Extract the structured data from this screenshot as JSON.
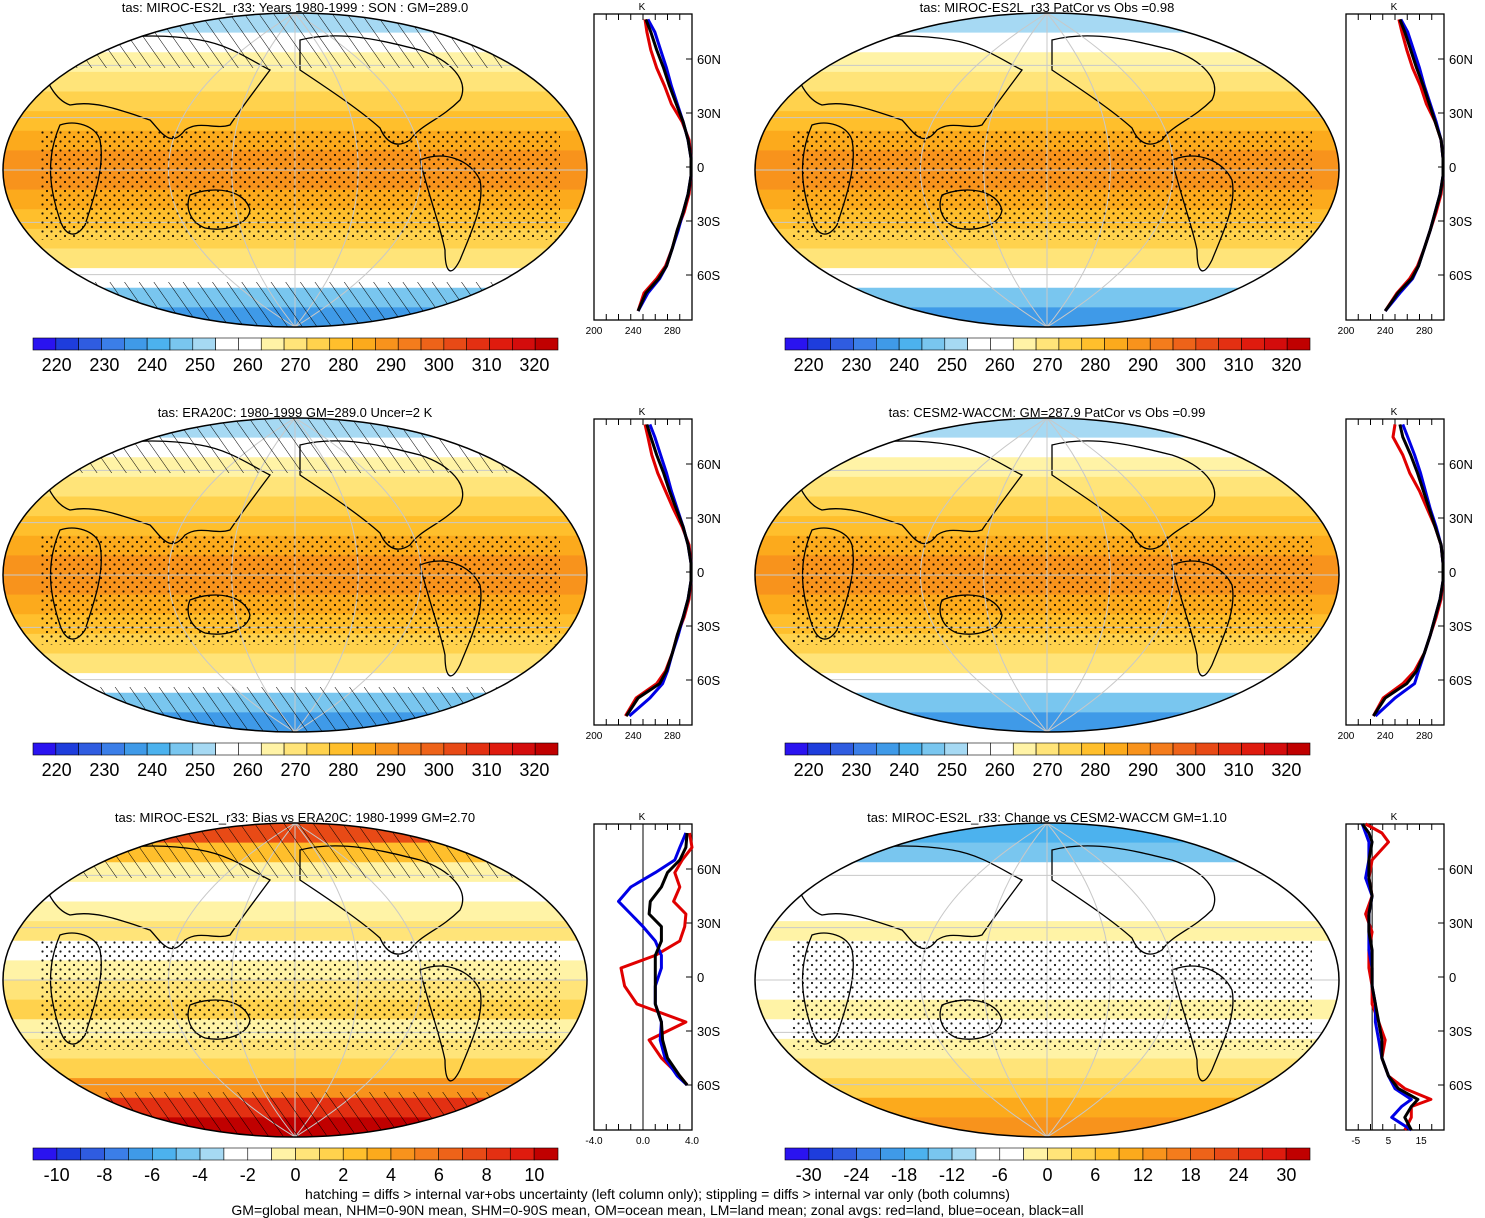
{
  "panels": [
    {
      "title": "tas: MIROC-ES2L_r33: Years 1980-1999 : SON : GM=289.0",
      "colorbar": "abs",
      "hatch": true,
      "land_style": "abs"
    },
    {
      "title": "tas: MIROC-ES2L_r33 PatCor vs Obs =0.98",
      "colorbar": "abs",
      "hatch": false,
      "land_style": "abs"
    },
    {
      "title": "tas: ERA20C: 1980-1999 GM=289.0 Uncer=2 K",
      "colorbar": "abs",
      "hatch": true,
      "land_style": "abs"
    },
    {
      "title": "tas: CESM2-WACCM: GM=287.9 PatCor vs Obs =0.99",
      "colorbar": "abs",
      "hatch": false,
      "land_style": "abs"
    },
    {
      "title": "tas: MIROC-ES2L_r33: Bias vs ERA20C: 1980-1999  GM=2.70",
      "colorbar": "bias",
      "hatch": true,
      "land_style": "bias"
    },
    {
      "title": "tas: MIROC-ES2L_r33: Change vs CESM2-WACCM GM=1.10",
      "colorbar": "change",
      "hatch": false,
      "land_style": "change"
    }
  ],
  "colorbars": {
    "abs": {
      "labels": [
        "220",
        "230",
        "240",
        "250",
        "260",
        "270",
        "280",
        "290",
        "300",
        "310",
        "320"
      ],
      "colors": [
        "#2a13f0",
        "#1e3ddc",
        "#2f5ce0",
        "#3b7ee8",
        "#3f9ae8",
        "#4cb2ee",
        "#79c6ef",
        "#a6d9f3",
        "#ffffff",
        "#ffffff",
        "#fff3a6",
        "#ffe479",
        "#ffd24d",
        "#ffbf2c",
        "#fcaa1c",
        "#f8931c",
        "#f47c1c",
        "#ee6319",
        "#e84a16",
        "#e33012",
        "#df1b0e",
        "#d40c0c",
        "#c00000"
      ]
    },
    "bias": {
      "labels": [
        "-10",
        "-8",
        "-6",
        "-4",
        "-2",
        "0",
        "2",
        "4",
        "6",
        "8",
        "10"
      ],
      "colors": [
        "#2a13f0",
        "#1e3ddc",
        "#2f5ce0",
        "#3b7ee8",
        "#3f9ae8",
        "#4cb2ee",
        "#79c6ef",
        "#a6d9f3",
        "#ffffff",
        "#ffffff",
        "#fff3a6",
        "#ffe479",
        "#ffd24d",
        "#ffbf2c",
        "#fcaa1c",
        "#f8931c",
        "#f47c1c",
        "#ee6319",
        "#e84a16",
        "#e33012",
        "#df1b0e",
        "#c00000"
      ]
    },
    "change": {
      "labels": [
        "-30",
        "-24",
        "-18",
        "-12",
        "-6",
        "0",
        "6",
        "12",
        "18",
        "24",
        "30"
      ],
      "colors": [
        "#2a13f0",
        "#1e3ddc",
        "#2f5ce0",
        "#3b7ee8",
        "#3f9ae8",
        "#4cb2ee",
        "#79c6ef",
        "#a6d9f3",
        "#ffffff",
        "#ffffff",
        "#fff3a6",
        "#ffe479",
        "#ffd24d",
        "#ffbf2c",
        "#fcaa1c",
        "#f8931c",
        "#f47c1c",
        "#ee6319",
        "#e84a16",
        "#e33012",
        "#df1b0e",
        "#c00000"
      ]
    }
  },
  "chart_data": [
    {
      "type": "line",
      "title": "",
      "unit": "K",
      "ylabels": [
        "60N",
        "30N",
        "0",
        "30S",
        "60S"
      ],
      "xlabels": [
        "200",
        "240",
        "280"
      ],
      "xlim": [
        200,
        300
      ],
      "lat": [
        82,
        75,
        65,
        55,
        45,
        35,
        25,
        15,
        5,
        -5,
        -15,
        -25,
        -35,
        -45,
        -55,
        -62,
        -70,
        -80
      ],
      "series": [
        {
          "color": "red",
          "values": [
            252,
            254,
            258,
            264,
            272,
            279,
            290,
            297,
            299,
            299,
            297,
            292,
            285,
            280,
            273,
            264,
            251,
            245
          ]
        },
        {
          "color": "blue",
          "values": [
            255,
            262,
            268,
            274,
            279,
            285,
            291,
            296,
            299,
            299,
            296,
            291,
            286,
            280,
            274,
            267,
            255,
            245
          ]
        },
        {
          "color": "black",
          "values": [
            253,
            258,
            264,
            271,
            277,
            284,
            291,
            296,
            299,
            299,
            296,
            291,
            285,
            280,
            274,
            266,
            253,
            245
          ]
        }
      ]
    },
    {
      "type": "line",
      "title": "",
      "unit": "K",
      "ylabels": [
        "60N",
        "30N",
        "0",
        "30S",
        "60S"
      ],
      "xlabels": [
        "200",
        "240",
        "280"
      ],
      "xlim": [
        200,
        300
      ],
      "lat": [
        82,
        75,
        65,
        55,
        45,
        35,
        25,
        15,
        5,
        -5,
        -15,
        -25,
        -35,
        -45,
        -55,
        -62,
        -70,
        -80
      ],
      "series": [
        {
          "color": "red",
          "values": [
            254,
            257,
            262,
            268,
            276,
            282,
            291,
            297,
            299,
            299,
            297,
            292,
            286,
            280,
            273,
            265,
            252,
            240
          ]
        },
        {
          "color": "blue",
          "values": [
            256,
            263,
            269,
            275,
            280,
            286,
            292,
            297,
            299,
            299,
            296,
            291,
            286,
            280,
            274,
            268,
            255,
            240
          ]
        },
        {
          "color": "black",
          "values": [
            255,
            260,
            266,
            272,
            279,
            285,
            291,
            297,
            299,
            299,
            296,
            291,
            286,
            280,
            274,
            267,
            253,
            240
          ]
        }
      ]
    },
    {
      "type": "line",
      "title": "",
      "unit": "K",
      "ylabels": [
        "60N",
        "30N",
        "0",
        "30S",
        "60S"
      ],
      "xlabels": [
        "200",
        "240",
        "280"
      ],
      "xlim": [
        200,
        300
      ],
      "lat": [
        82,
        75,
        65,
        55,
        45,
        35,
        25,
        15,
        5,
        -5,
        -15,
        -25,
        -35,
        -45,
        -55,
        -62,
        -70,
        -80
      ],
      "series": [
        {
          "color": "red",
          "values": [
            252,
            255,
            259,
            265,
            273,
            281,
            290,
            297,
            299,
            299,
            297,
            292,
            285,
            280,
            273,
            264,
            243,
            232
          ]
        },
        {
          "color": "blue",
          "values": [
            257,
            262,
            268,
            274,
            279,
            285,
            291,
            296,
            299,
            299,
            296,
            291,
            286,
            280,
            275,
            270,
            257,
            236
          ]
        },
        {
          "color": "black",
          "values": [
            254,
            258,
            264,
            271,
            277,
            284,
            291,
            296,
            299,
            299,
            296,
            291,
            285,
            280,
            274,
            267,
            245,
            233
          ]
        }
      ]
    },
    {
      "type": "line",
      "title": "",
      "unit": "K",
      "ylabels": [
        "60N",
        "30N",
        "0",
        "30S",
        "60S"
      ],
      "xlabels": [
        "200",
        "240",
        "280"
      ],
      "xlim": [
        200,
        300
      ],
      "lat": [
        82,
        75,
        65,
        55,
        45,
        35,
        25,
        15,
        5,
        -5,
        -15,
        -25,
        -35,
        -45,
        -55,
        -62,
        -70,
        -80
      ],
      "series": [
        {
          "color": "red",
          "values": [
            250,
            248,
            258,
            265,
            275,
            283,
            291,
            297,
            299,
            299,
            297,
            292,
            286,
            280,
            270,
            258,
            238,
            228
          ]
        },
        {
          "color": "blue",
          "values": [
            258,
            263,
            270,
            276,
            281,
            286,
            292,
            297,
            299,
            299,
            296,
            291,
            286,
            280,
            274,
            270,
            250,
            230
          ]
        },
        {
          "color": "black",
          "values": [
            255,
            258,
            266,
            273,
            279,
            285,
            291,
            297,
            299,
            299,
            296,
            291,
            286,
            280,
            272,
            262,
            240,
            228
          ]
        }
      ]
    },
    {
      "type": "line",
      "title": "",
      "unit": "K",
      "ylabels": [
        "60N",
        "30N",
        "0",
        "30S",
        "60S"
      ],
      "xlabels": [
        "-4.0",
        "0.0",
        "4.0"
      ],
      "xlim": [
        -4,
        4
      ],
      "lat": [
        80,
        72,
        65,
        58,
        50,
        42,
        35,
        28,
        20,
        12,
        5,
        -5,
        -15,
        -25,
        -35,
        -45,
        -55,
        -60
      ],
      "series": [
        {
          "color": "red",
          "values": [
            3.8,
            4.0,
            3.2,
            2.6,
            3.0,
            2.5,
            3.5,
            3.4,
            3.0,
            1.0,
            -1.8,
            -1.5,
            -0.5,
            3.5,
            0.5,
            1.5,
            3.0,
            3.6
          ]
        },
        {
          "color": "blue",
          "values": [
            3.5,
            3.0,
            2.6,
            1.0,
            -1.0,
            -2.0,
            -1.0,
            0.0,
            1.0,
            1.5,
            1.5,
            1.0,
            1.0,
            1.5,
            1.4,
            1.8,
            2.8,
            3.6
          ]
        },
        {
          "color": "black",
          "values": [
            3.6,
            3.5,
            3.0,
            2.0,
            1.5,
            0.6,
            0.5,
            1.5,
            1.5,
            1.0,
            1.0,
            1.0,
            1.0,
            1.5,
            1.6,
            2.0,
            3.0,
            3.6
          ]
        }
      ]
    },
    {
      "type": "line",
      "title": "",
      "unit": "K",
      "ylabels": [
        "60N",
        "30N",
        "0",
        "30S",
        "60S"
      ],
      "xlabels": [
        "-5",
        "5",
        "15"
      ],
      "xlim": [
        -8,
        22
      ],
      "lat": [
        85,
        80,
        75,
        65,
        55,
        45,
        35,
        25,
        15,
        5,
        -5,
        -15,
        -25,
        -35,
        -45,
        -55,
        -62,
        -68,
        -72,
        -78,
        -85
      ],
      "series": [
        {
          "color": "red",
          "values": [
            -2,
            3,
            5,
            0,
            -1,
            0,
            -2,
            0,
            -1,
            -1,
            0,
            0,
            2,
            4,
            3,
            5,
            10,
            18,
            12,
            12,
            10
          ]
        },
        {
          "color": "blue",
          "values": [
            -3,
            -2,
            -1,
            -1,
            -2,
            0,
            -1,
            -1,
            -1,
            0,
            0,
            1,
            1,
            2,
            3,
            5,
            7,
            12,
            9,
            6,
            12
          ]
        },
        {
          "color": "black",
          "values": [
            -3,
            -1,
            0,
            -1,
            -1,
            0,
            -1,
            -1,
            0,
            0,
            0,
            1,
            2,
            3,
            3,
            5,
            8,
            14,
            12,
            10,
            12
          ]
        }
      ]
    }
  ],
  "footnote": {
    "line1": "hatching = diffs > internal var+obs uncertainty (left column only); stippling = diffs > internal var only (both columns)",
    "line2": "GM=global mean, NHM=0-90N mean, SHM=0-90S mean, OM=ocean mean, LM=land mean; zonal avgs: red=land, blue=ocean, black=all"
  }
}
